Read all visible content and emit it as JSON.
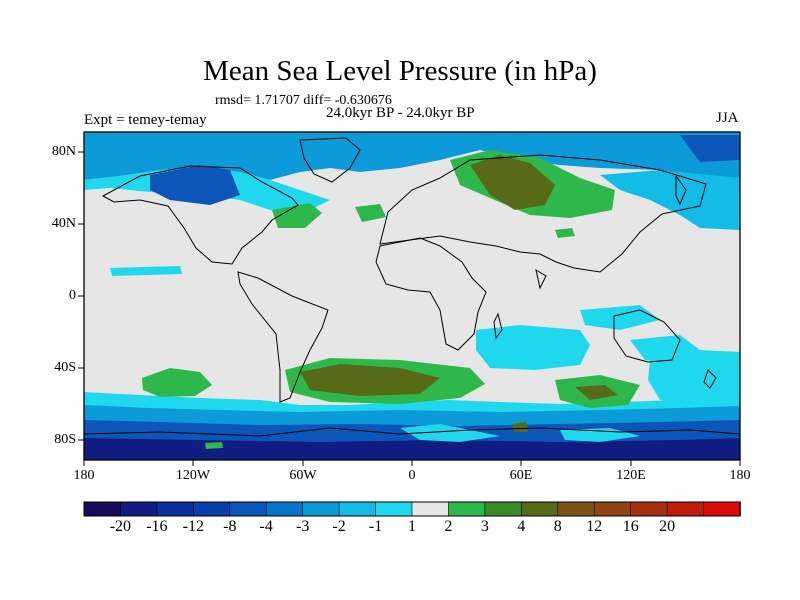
{
  "title": "Mean Sea Level Pressure (in hPa)",
  "stats": "rmsd= 1.71707 diff= -0.630676",
  "period": "24.0kyr BP - 24.0kyr BP",
  "experiment": "Expt = temey-temay",
  "season": "JJA",
  "y_axis_labels": [
    "80N",
    "40N",
    "0",
    "40S",
    "80S"
  ],
  "x_axis_labels": [
    "180",
    "120W",
    "60W",
    "0",
    "60E",
    "120E",
    "180"
  ],
  "colorbar": {
    "labels": [
      "-20",
      "-16",
      "-12",
      "-8",
      "-4",
      "-3",
      "-2",
      "-1",
      "1",
      "2",
      "3",
      "4",
      "8",
      "12",
      "16",
      "20"
    ],
    "colors": [
      "#1a0a5a",
      "#101c80",
      "#0a2e9c",
      "#0a3ea8",
      "#0b56b8",
      "#0a74c8",
      "#0c9ad8",
      "#12bce6",
      "#20d8ee",
      "#e6e6e6",
      "#2eb84c",
      "#3a8c28",
      "#566a18",
      "#7a5418",
      "#8e4414",
      "#a83010",
      "#c01c0c",
      "#d80c08"
    ]
  },
  "map_colors": {
    "ocean_neutral": "#e6e6e6",
    "light_cyan": "#20d8ee",
    "cyan": "#12bce6",
    "medium_blue": "#0c9ad8",
    "blue": "#0a74c8",
    "deep_blue": "#0b56b8",
    "dark_blue": "#0a3ea8",
    "navy": "#101c80",
    "green": "#2eb84c",
    "dark_green": "#3a8c28",
    "olive": "#566a18",
    "brown": "#7a5418"
  }
}
